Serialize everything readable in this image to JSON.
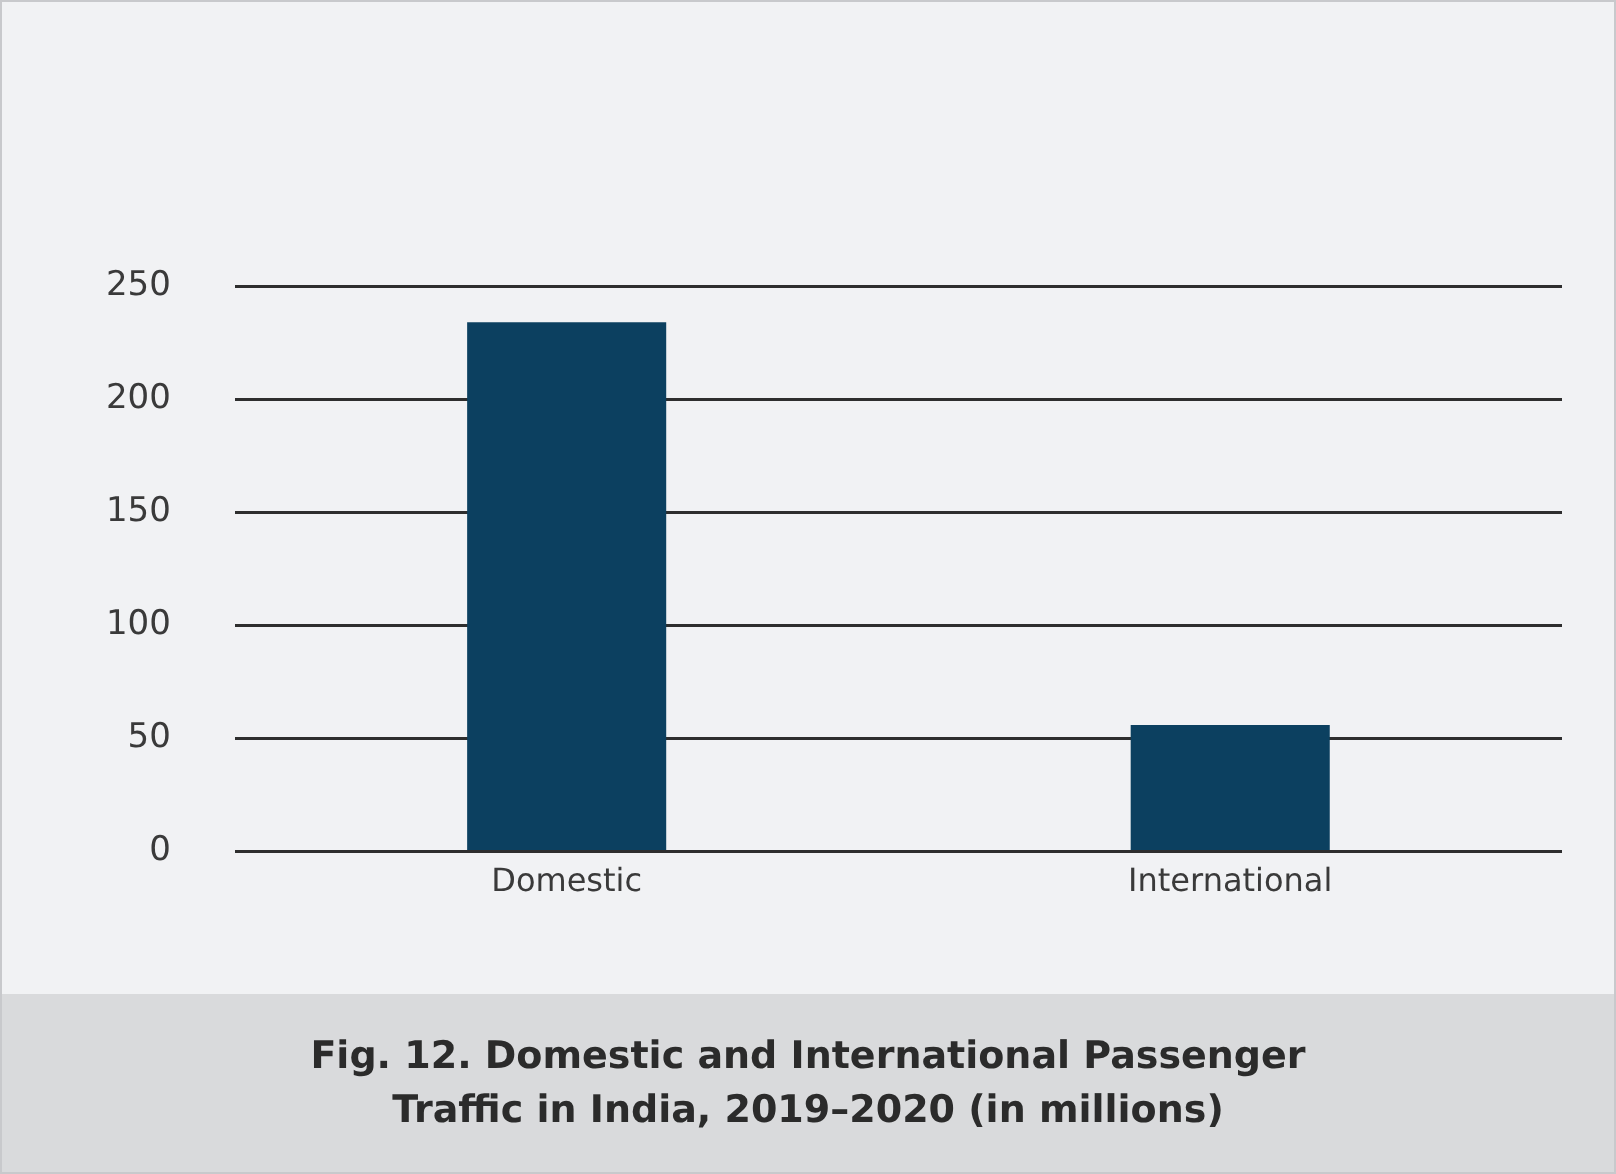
{
  "chart_data": {
    "type": "bar",
    "title": "Fig. 12. Domestic and International Passenger Traffic in India, 2019–2020 (in millions)",
    "categories": [
      "Domestic",
      "International"
    ],
    "values": [
      234,
      56
    ],
    "color": "#0c4060",
    "ylim": [
      0,
      250
    ],
    "yticks": [
      0,
      50,
      100,
      150,
      200,
      250
    ],
    "grid": "y"
  }
}
